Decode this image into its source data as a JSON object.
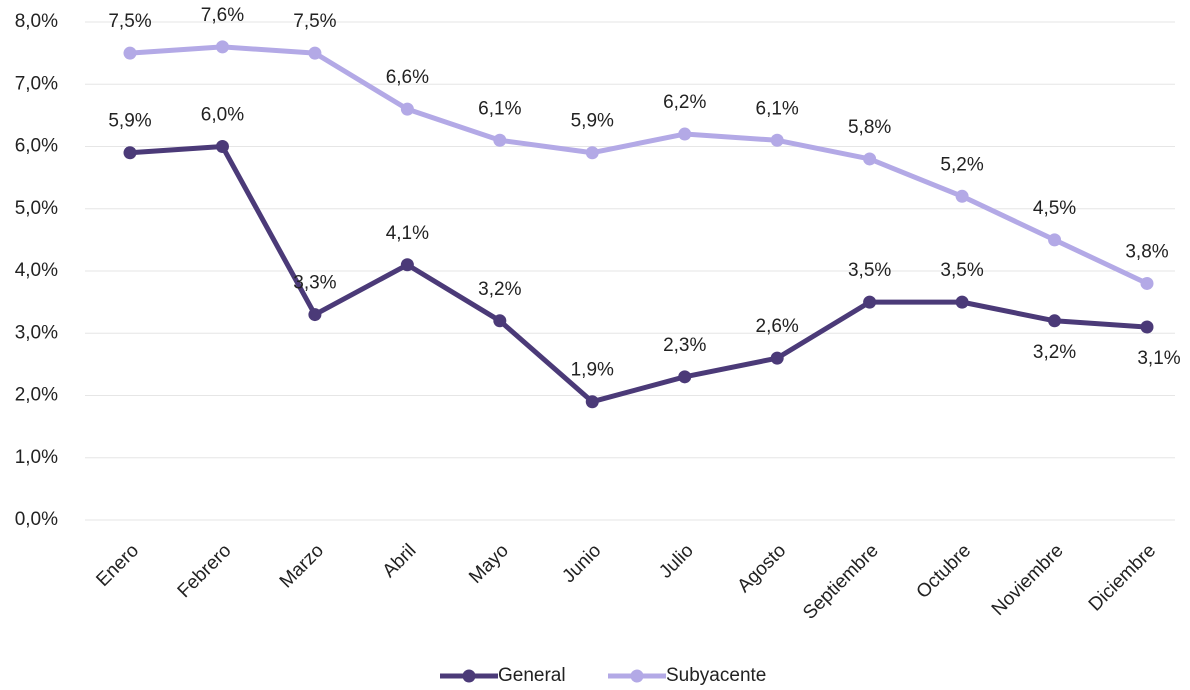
{
  "chart_data": {
    "type": "line",
    "categories": [
      "Enero",
      "Febrero",
      "Marzo",
      "Abril",
      "Mayo",
      "Junio",
      "Julio",
      "Agosto",
      "Septiembre",
      "Octubre",
      "Noviembre",
      "Diciembre"
    ],
    "series": [
      {
        "name": "General",
        "color": "#4b3a78",
        "values": [
          5.9,
          6.0,
          3.3,
          4.1,
          3.2,
          1.9,
          2.3,
          2.6,
          3.5,
          3.5,
          3.2,
          3.1
        ],
        "value_labels": [
          "5,9%",
          "6,0%",
          "3,3%",
          "4,1%",
          "3,2%",
          "1,9%",
          "2,3%",
          "2,6%",
          "3,5%",
          "3,5%",
          "3,2%",
          "3,1%"
        ]
      },
      {
        "name": "Subyacente",
        "color": "#b3a9e6",
        "values": [
          7.5,
          7.6,
          7.5,
          6.6,
          6.1,
          5.9,
          6.2,
          6.1,
          5.8,
          5.2,
          4.5,
          3.8
        ],
        "value_labels": [
          "7,5%",
          "7,6%",
          "7,5%",
          "6,6%",
          "6,1%",
          "5,9%",
          "6,2%",
          "6,1%",
          "5,8%",
          "5,2%",
          "4,5%",
          "3,8%"
        ]
      }
    ],
    "ylim": [
      0,
      8
    ],
    "yticks": [
      {
        "value": 0,
        "label": "0,0%"
      },
      {
        "value": 1,
        "label": "1,0%"
      },
      {
        "value": 2,
        "label": "2,0%"
      },
      {
        "value": 3,
        "label": "3,0%"
      },
      {
        "value": 4,
        "label": "4,0%"
      },
      {
        "value": 5,
        "label": "5,0%"
      },
      {
        "value": 6,
        "label": "6,0%"
      },
      {
        "value": 7,
        "label": "7,0%"
      },
      {
        "value": 8,
        "label": "8,0%"
      }
    ],
    "legend": "bottom"
  }
}
